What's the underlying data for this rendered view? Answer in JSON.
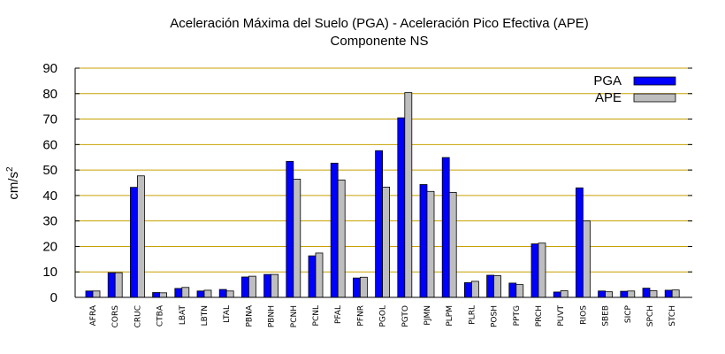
{
  "chart_data": {
    "type": "bar",
    "title": "Aceleración Máxima del Suelo (PGA) -  Aceleración Pico Efectiva (APE)",
    "subtitle": "Componente NS",
    "xlabel": "",
    "ylabel": "cm/s²",
    "ylabel_base": "cm/s",
    "ylabel_exp": "2",
    "ylim": [
      0,
      90
    ],
    "yticks": [
      0,
      10,
      20,
      30,
      40,
      50,
      60,
      70,
      80,
      90
    ],
    "grid": true,
    "legend_position": "top-right",
    "categories": [
      "AFRA",
      "CORS",
      "CRUC",
      "CTBA",
      "LBAT",
      "LBTN",
      "LTAL",
      "PBNA",
      "PBNH",
      "PCNH",
      "PCNL",
      "PFAL",
      "PFNR",
      "PGOL",
      "PGTO",
      "PJMN",
      "PLPM",
      "PLRL",
      "POSH",
      "PPTG",
      "PRCH",
      "PUVT",
      "RIOS",
      "SBEB",
      "SICP",
      "SPCH",
      "STCH"
    ],
    "series": [
      {
        "name": "PGA",
        "color": "#0000ff",
        "values": [
          2.5,
          9.7,
          43.2,
          1.9,
          3.5,
          2.5,
          3.1,
          8.0,
          9.0,
          53.4,
          16.3,
          52.7,
          7.6,
          57.6,
          70.5,
          44.3,
          54.9,
          5.8,
          8.7,
          5.6,
          21.0,
          2.1,
          43.0,
          2.5,
          2.4,
          3.6,
          2.8
        ]
      },
      {
        "name": "APE",
        "color": "#bebebe",
        "values": [
          2.5,
          9.7,
          47.7,
          1.8,
          3.9,
          2.8,
          2.5,
          8.3,
          9.0,
          46.4,
          17.4,
          46.1,
          7.9,
          43.3,
          80.4,
          41.6,
          41.2,
          6.3,
          8.5,
          5.0,
          21.3,
          2.6,
          30.0,
          2.2,
          2.5,
          2.6,
          2.9
        ]
      }
    ],
    "colors": {
      "grid": "#c8a000",
      "axis": "#000000",
      "bar_outline": "#000000"
    }
  }
}
